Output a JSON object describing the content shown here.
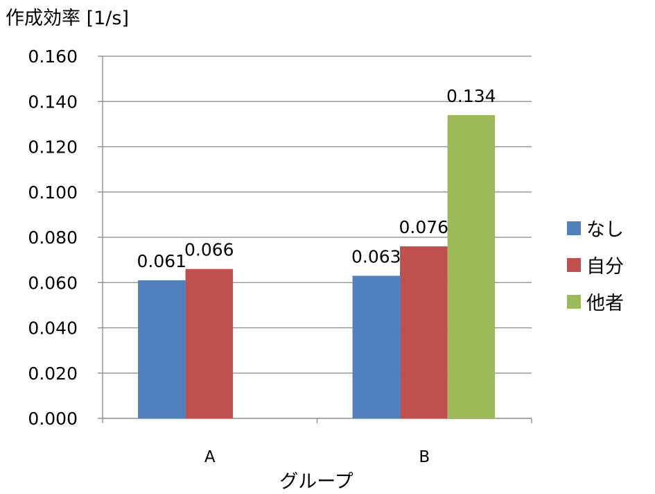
{
  "chart_data": {
    "type": "bar",
    "ylabel": "作成効率 [1/s]",
    "xlabel": "グループ",
    "categories": [
      "A",
      "B"
    ],
    "ylim": [
      0,
      0.16
    ],
    "yticks": [
      "0.000",
      "0.020",
      "0.040",
      "0.060",
      "0.080",
      "0.100",
      "0.120",
      "0.140",
      "0.160"
    ],
    "grid": true,
    "legend_position": "right",
    "series": [
      {
        "name": "なし",
        "color": "#4F81BD",
        "values": [
          0.061,
          0.063
        ],
        "labels": [
          "0.061",
          "0.063"
        ]
      },
      {
        "name": "自分",
        "color": "#C0504D",
        "values": [
          0.066,
          0.076
        ],
        "labels": [
          "0.066",
          "0.076"
        ]
      },
      {
        "name": "他者",
        "color": "#9BBB59",
        "values": [
          null,
          0.134
        ],
        "labels": [
          null,
          "0.134"
        ]
      }
    ]
  }
}
